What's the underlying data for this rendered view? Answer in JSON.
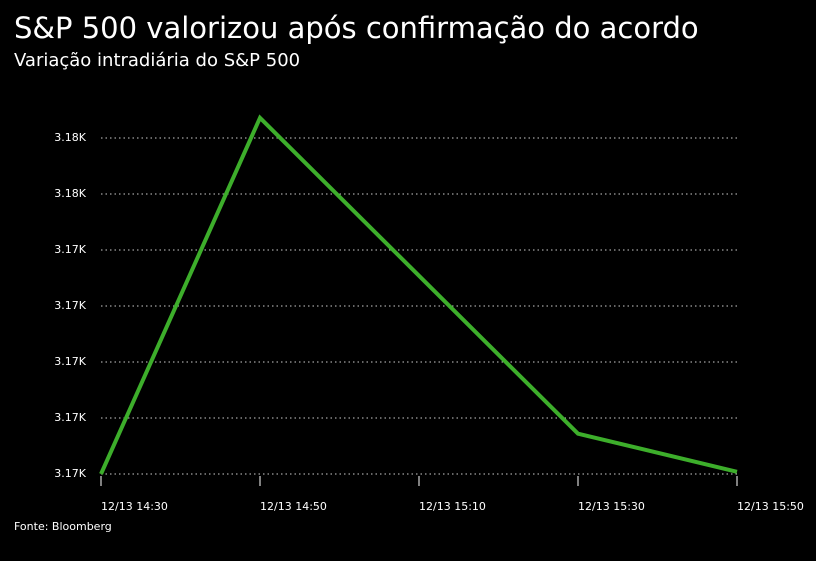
{
  "chart_data": {
    "type": "line",
    "title": "S&P 500 valorizou após confirmação do acordo",
    "subtitle": "Variação intradiária do S&P 500",
    "source": "Fonte: Bloomberg",
    "x": [
      "12/13 14:30",
      "12/13 14:50",
      "12/13 15:30",
      "12/13 15:50"
    ],
    "xticks": [
      "12/13 14:30",
      "12/13 14:50",
      "12/13 15:10",
      "12/13 15:30",
      "12/13 15:50"
    ],
    "series": [
      {
        "name": "S&P 500",
        "color": "#3dae2b",
        "values": [
          3172.5,
          3175.68,
          3172.86,
          3172.52
        ]
      }
    ],
    "ylim": [
      3172.5,
      3175.75
    ],
    "yticks": [
      {
        "value": 3172.5,
        "label": "3.17K"
      },
      {
        "value": 3173,
        "label": "3.17K"
      },
      {
        "value": 3173.5,
        "label": "3.17K"
      },
      {
        "value": 3174,
        "label": "3.17K"
      },
      {
        "value": 3174.5,
        "label": "3.17K"
      },
      {
        "value": 3175,
        "label": "3.18K"
      },
      {
        "value": 3175.5,
        "label": "3.18K"
      }
    ],
    "grid": true
  }
}
